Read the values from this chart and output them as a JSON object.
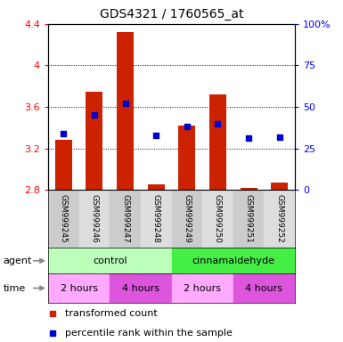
{
  "title": "GDS4321 / 1760565_at",
  "samples": [
    "GSM999245",
    "GSM999246",
    "GSM999247",
    "GSM999248",
    "GSM999249",
    "GSM999250",
    "GSM999251",
    "GSM999252"
  ],
  "red_values": [
    3.28,
    3.75,
    4.32,
    2.85,
    3.42,
    3.72,
    2.82,
    2.87
  ],
  "blue_values": [
    34,
    45,
    52,
    33,
    38,
    40,
    31,
    32
  ],
  "ylim_left": [
    2.8,
    4.4
  ],
  "ylim_right": [
    0,
    100
  ],
  "yticks_left": [
    2.8,
    3.2,
    3.6,
    4.0,
    4.4
  ],
  "yticks_right": [
    0,
    25,
    50,
    75,
    100
  ],
  "ytick_labels_left": [
    "2.8",
    "3.2",
    "3.6",
    "4",
    "4.4"
  ],
  "ytick_labels_right": [
    "0",
    "25",
    "50",
    "75",
    "100%"
  ],
  "bar_color": "#cc2200",
  "dot_color": "#0000cc",
  "agent_row": [
    {
      "label": "control",
      "start": 0,
      "end": 4,
      "color": "#bbffbb"
    },
    {
      "label": "cinnamaldehyde",
      "start": 4,
      "end": 8,
      "color": "#44ee44"
    }
  ],
  "time_row": [
    {
      "label": "2 hours",
      "start": 0,
      "end": 2,
      "color": "#ffaaff"
    },
    {
      "label": "4 hours",
      "start": 2,
      "end": 4,
      "color": "#dd55dd"
    },
    {
      "label": "2 hours",
      "start": 4,
      "end": 6,
      "color": "#ffaaff"
    },
    {
      "label": "4 hours",
      "start": 6,
      "end": 8,
      "color": "#dd55dd"
    }
  ],
  "legend_red_label": "transformed count",
  "legend_blue_label": "percentile rank within the sample",
  "agent_label": "agent",
  "time_label": "time",
  "bar_width": 0.55,
  "sample_bg_even": "#cccccc",
  "sample_bg_odd": "#dddddd"
}
